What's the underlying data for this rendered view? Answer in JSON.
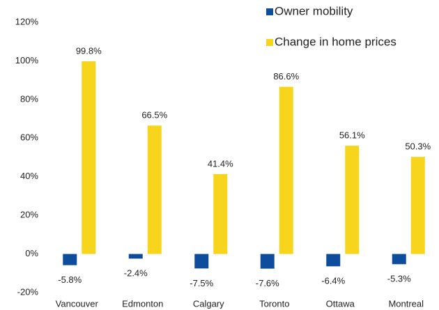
{
  "chart_data": {
    "type": "bar",
    "categories": [
      "Vancouver",
      "Edmonton",
      "Calgary",
      "Toronto",
      "Ottawa",
      "Montreal"
    ],
    "series": [
      {
        "name": "Owner mobility",
        "color": "#0e4d9c",
        "values": [
          -5.8,
          -2.4,
          -7.5,
          -7.6,
          -6.4,
          -5.3
        ],
        "value_labels": [
          "-5.8%",
          "-2.4%",
          "-7.5%",
          "-7.6%",
          "-6.4%",
          "-5.3%"
        ]
      },
      {
        "name": "Change in home prices",
        "color": "#f7d51d",
        "values": [
          99.8,
          66.5,
          41.4,
          86.6,
          56.1,
          50.3
        ],
        "value_labels": [
          "99.8%",
          "66.5%",
          "41.4%",
          "86.6%",
          "56.1%",
          "50.3%"
        ]
      }
    ],
    "ylim": [
      -20,
      120
    ],
    "yticks": [
      {
        "value": -20,
        "label": "-20%"
      },
      {
        "value": 0,
        "label": "0%"
      },
      {
        "value": 20,
        "label": "20%"
      },
      {
        "value": 40,
        "label": "40%"
      },
      {
        "value": 60,
        "label": "60%"
      },
      {
        "value": 80,
        "label": "80%"
      },
      {
        "value": 100,
        "label": "100%"
      },
      {
        "value": 120,
        "label": "120%"
      }
    ],
    "grid": false,
    "legend": "top-right"
  }
}
